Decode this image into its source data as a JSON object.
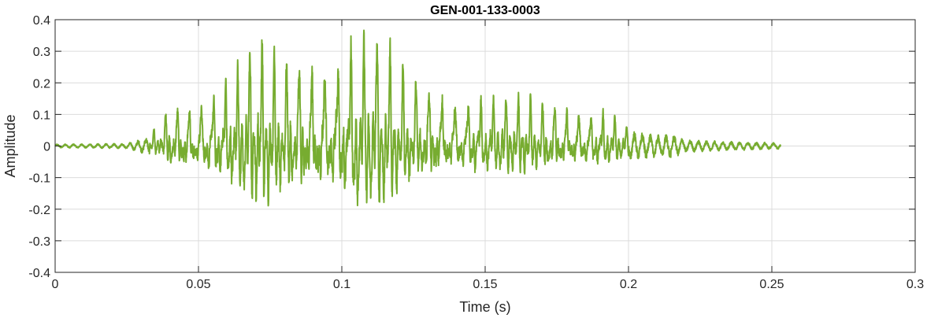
{
  "chart_data": {
    "type": "line",
    "title": "GEN-001-133-0003",
    "xlabel": "Time (s)",
    "ylabel": "Amplitude",
    "xlim": [
      0,
      0.3
    ],
    "ylim": [
      -0.4,
      0.4
    ],
    "x_ticks": [
      0,
      0.05,
      0.1,
      0.15,
      0.2,
      0.25,
      0.3
    ],
    "x_tick_labels": [
      "0",
      "0.05",
      "0.1",
      "0.15",
      "0.2",
      "0.25",
      "0.3"
    ],
    "y_ticks": [
      0.4,
      0.3,
      0.2,
      0.1,
      0,
      -0.1,
      -0.2,
      -0.3,
      -0.4
    ],
    "y_tick_labels": [
      "0.4",
      "0.3",
      "0.2",
      "0.1",
      "0",
      "-0.1",
      "-0.2",
      "-0.3",
      "-0.4"
    ],
    "grid": true,
    "line_color": "#77ac30",
    "signal": {
      "duration_s": 0.253,
      "envelope": [
        [
          0.0,
          0.006
        ],
        [
          0.025,
          0.008
        ],
        [
          0.033,
          0.03
        ],
        [
          0.036,
          0.06
        ],
        [
          0.04,
          0.12
        ],
        [
          0.05,
          0.14
        ],
        [
          0.06,
          0.2
        ],
        [
          0.07,
          0.28
        ],
        [
          0.08,
          0.24
        ],
        [
          0.09,
          0.26
        ],
        [
          0.1,
          0.28
        ],
        [
          0.106,
          0.32
        ],
        [
          0.115,
          0.27
        ],
        [
          0.125,
          0.19
        ],
        [
          0.14,
          0.15
        ],
        [
          0.16,
          0.13
        ],
        [
          0.18,
          0.12
        ],
        [
          0.19,
          0.11
        ],
        [
          0.195,
          0.09
        ],
        [
          0.2,
          0.05
        ],
        [
          0.21,
          0.035
        ],
        [
          0.215,
          0.04
        ],
        [
          0.22,
          0.02
        ],
        [
          0.235,
          0.015
        ],
        [
          0.253,
          0.01
        ]
      ],
      "pitch_hz": 230
    }
  }
}
